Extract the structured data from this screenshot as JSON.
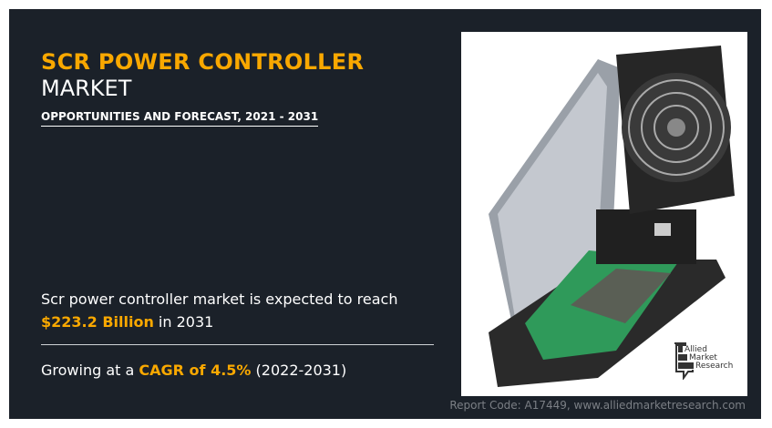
{
  "title": {
    "line1": "SCR POWER CONTROLLER",
    "line2": "MARKET"
  },
  "subtitle": "OPPORTUNITIES AND FORECAST, 2021 - 2031",
  "stat_reach": {
    "prefix": "Scr power controller market is expected to reach",
    "value": "$223.2 Billion",
    "suffix": "in 2031"
  },
  "stat_cagr": {
    "prefix": "Growing at a",
    "value": "CAGR of 4.5%",
    "suffix": "(2022-2031)"
  },
  "logo": {
    "line1": "Allied",
    "line2": "Market",
    "line3": "Research"
  },
  "footer": "Report Code: A17449, www.alliedmarketresearch.com",
  "colors": {
    "background": "#1b2129",
    "accent": "#f9a800",
    "text": "#ffffff"
  }
}
